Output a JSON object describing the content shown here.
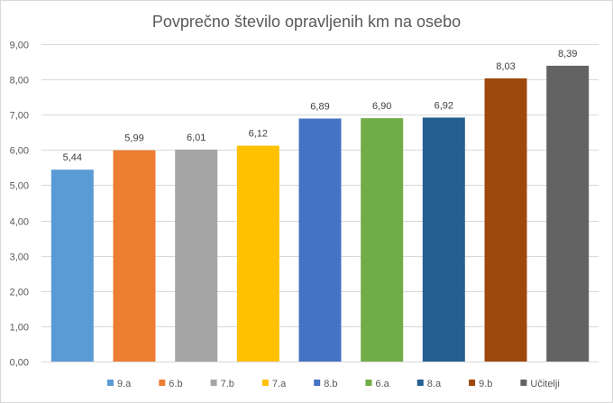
{
  "chart_data": {
    "type": "bar",
    "title": "Povprečno število opravljenih km na osebo",
    "categories": [
      "9.a",
      "6.b",
      "7.b",
      "7.a",
      "8.b",
      "6.a",
      "8.a",
      "9.b",
      "Učitelji"
    ],
    "values": [
      5.44,
      5.99,
      6.01,
      6.12,
      6.89,
      6.9,
      6.92,
      8.03,
      8.39
    ],
    "data_labels": [
      "5,44",
      "5,99",
      "6,01",
      "6,12",
      "6,89",
      "6,90",
      "6,92",
      "8,03",
      "8,39"
    ],
    "colors": [
      "#5b9bd5",
      "#ed7d31",
      "#a5a5a5",
      "#ffc000",
      "#4472c4",
      "#70ad47",
      "#255e91",
      "#9e480e",
      "#636363"
    ],
    "ylim": [
      0,
      9
    ],
    "yticks": [
      0,
      1,
      2,
      3,
      4,
      5,
      6,
      7,
      8,
      9
    ],
    "ytick_labels": [
      "0,00",
      "1,00",
      "2,00",
      "3,00",
      "4,00",
      "5,00",
      "6,00",
      "7,00",
      "8,00",
      "9,00"
    ],
    "xlabel": "",
    "ylabel": "",
    "grid": true,
    "legend_position": "bottom"
  }
}
